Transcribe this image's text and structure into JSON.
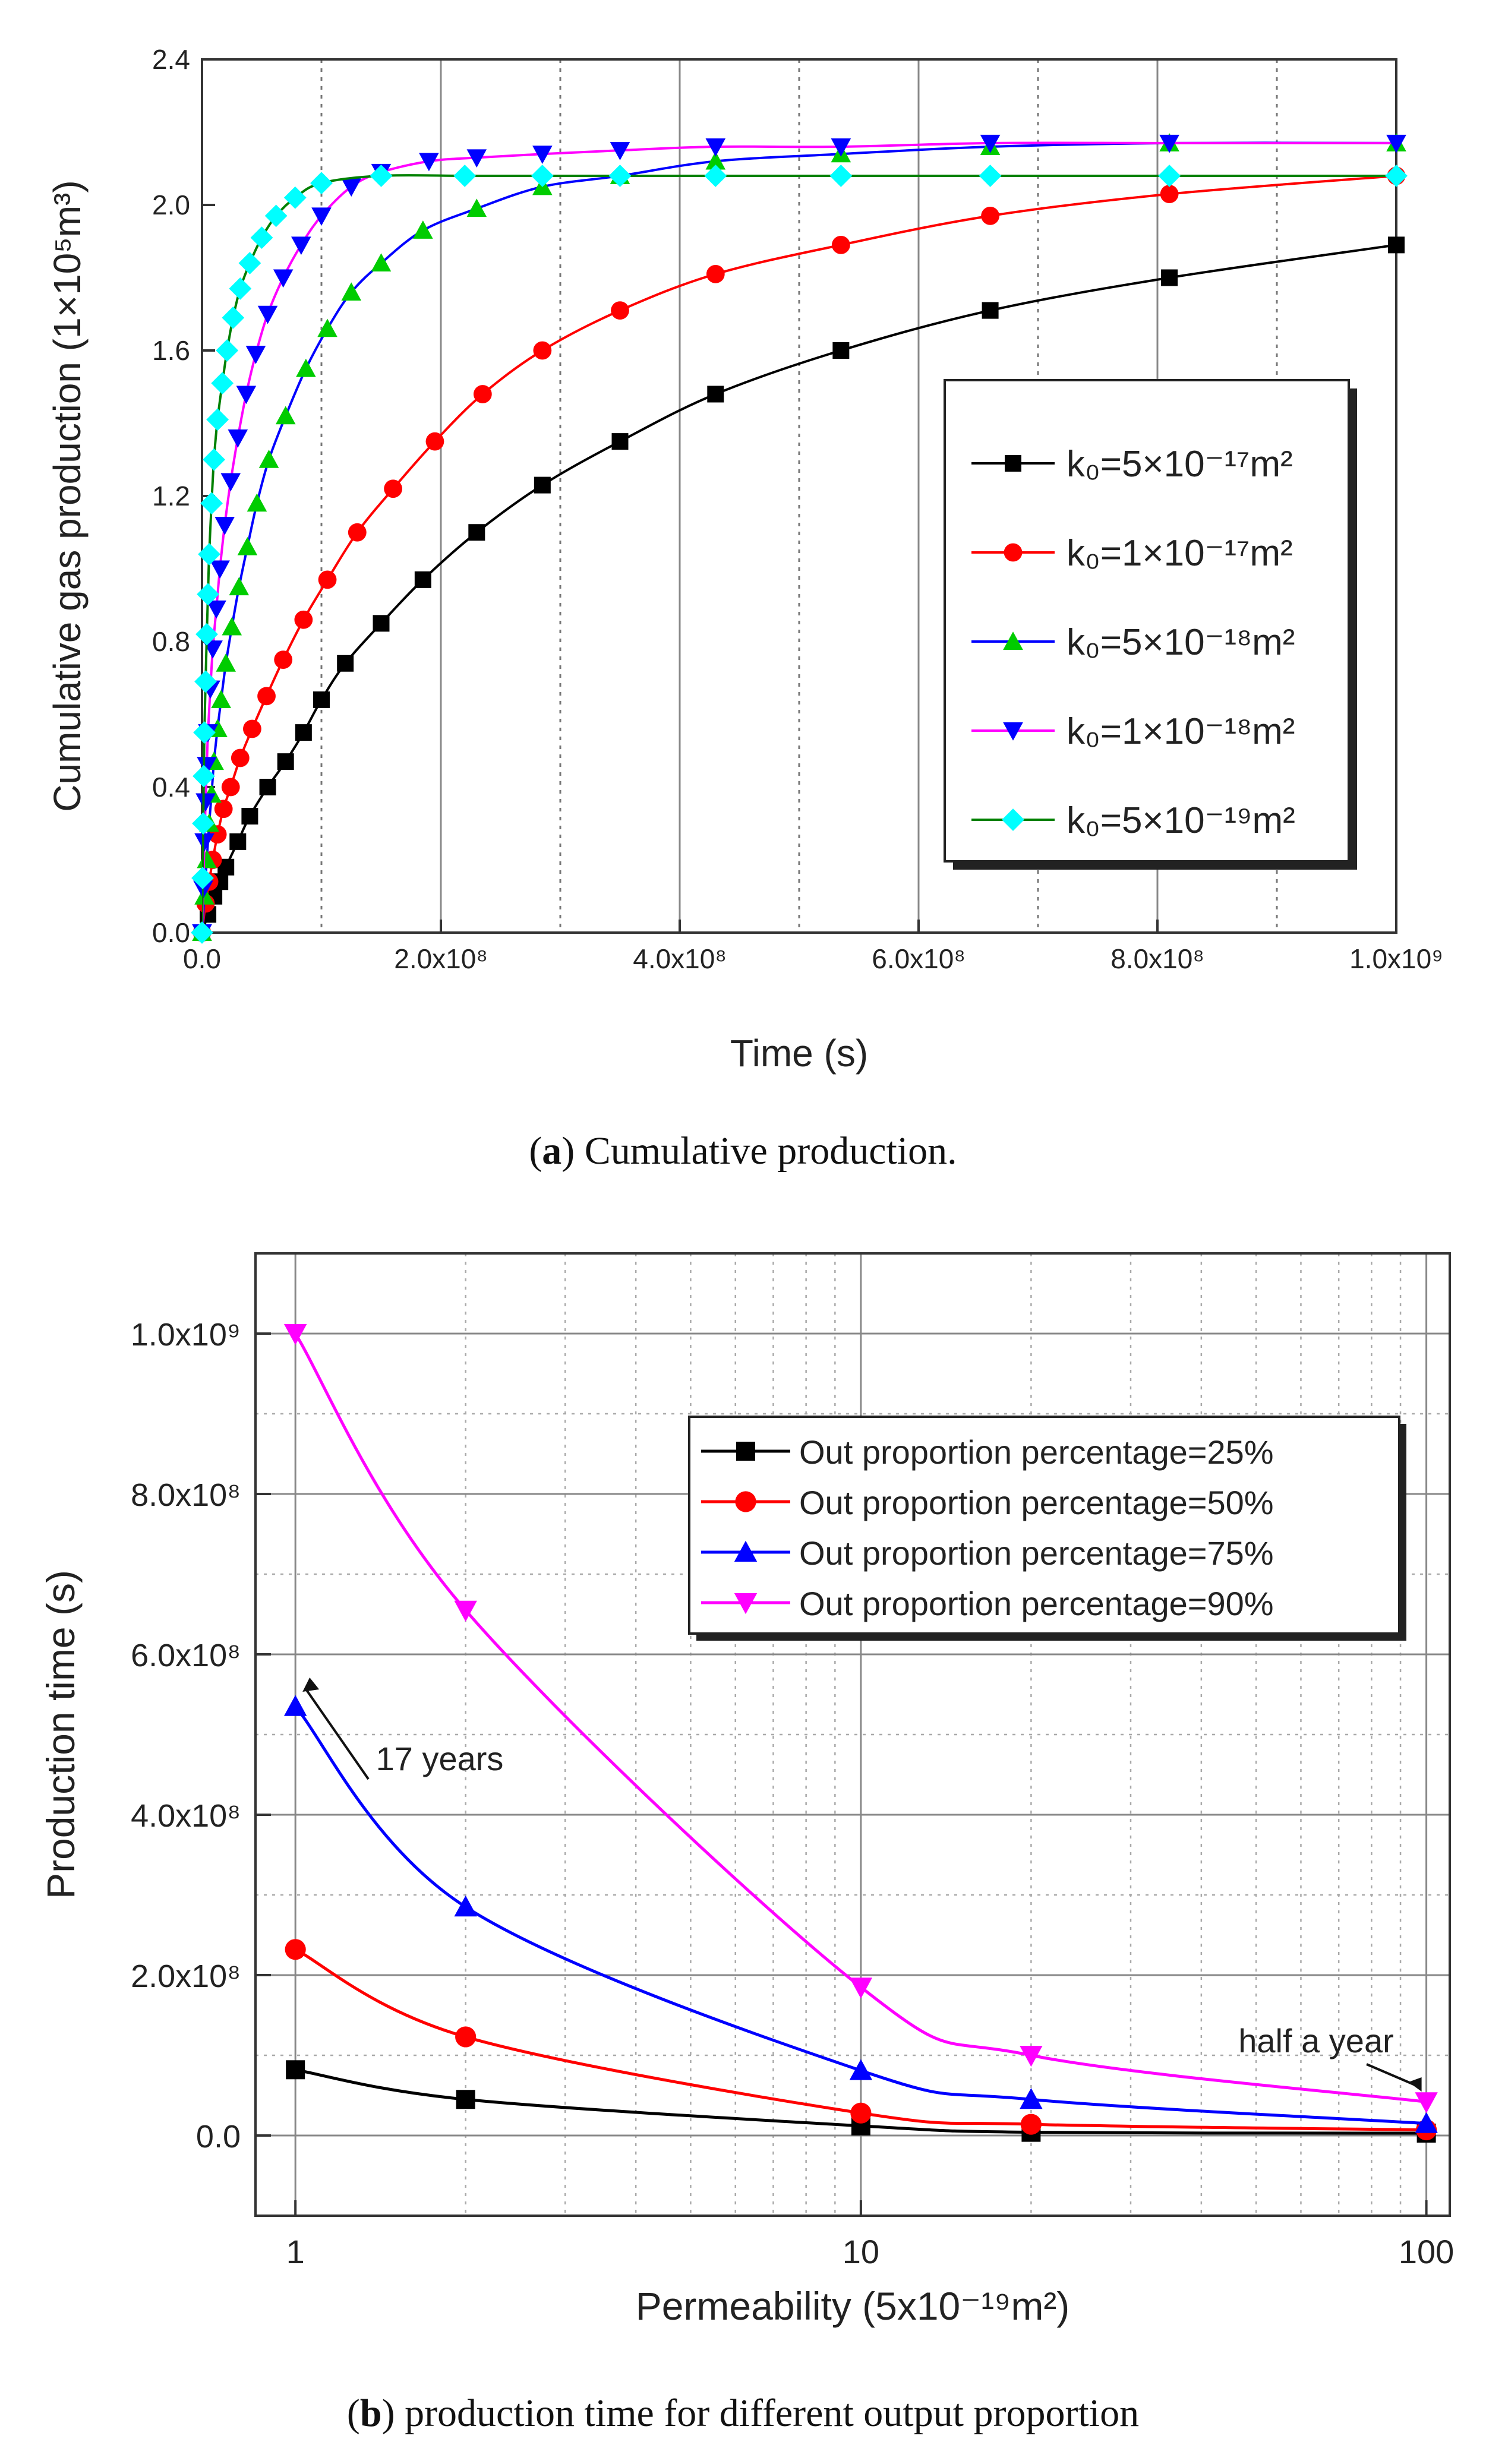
{
  "captions": {
    "a_letter": "a",
    "a_text": "Cumulative production.",
    "b_letter": "b",
    "b_text": "production time for different output proportion"
  },
  "chart_data": [
    {
      "type": "line",
      "panel": "a",
      "xlabel": "Time (s)",
      "ylabel": "Cumulative gas production  (1×10⁵m³)",
      "xlim": [
        0,
        1000000000
      ],
      "ylim": [
        0,
        2.4
      ],
      "xticks": [
        0,
        200000000,
        400000000,
        600000000,
        800000000,
        1000000000
      ],
      "xtick_labels": [
        "0.0",
        "2.0x10⁸",
        "4.0x10⁸",
        "6.0x10⁸",
        "8.0x10⁸",
        "1.0x10⁹"
      ],
      "yticks": [
        0,
        0.4,
        0.8,
        1.2,
        1.6,
        2.0,
        2.4
      ],
      "ytick_labels": [
        "0.0",
        "0.4",
        "0.8",
        "1.2",
        "1.6",
        "2.0",
        "2.4"
      ],
      "grid": "vertical",
      "legend_position": "center-right",
      "series": [
        {
          "name": "k₀=5×10⁻¹⁷m²",
          "color": "#000000",
          "marker": "square",
          "x": [
            0,
            5000000.0,
            10000000.0,
            15000000.0,
            20000000.0,
            30000000.0,
            40000000.0,
            55000000.0,
            70000000.0,
            85000000.0,
            100000000.0,
            120000000.0,
            150000000.0,
            185000000.0,
            230000000.0,
            285000000.0,
            350000000.0,
            430000000.0,
            535000000.0,
            660000000.0,
            810000000.0,
            1000000000.0
          ],
          "y": [
            0,
            0.05,
            0.1,
            0.14,
            0.18,
            0.25,
            0.32,
            0.4,
            0.47,
            0.55,
            0.64,
            0.74,
            0.85,
            0.97,
            1.1,
            1.23,
            1.35,
            1.48,
            1.6,
            1.71,
            1.8,
            1.89
          ]
        },
        {
          "name": "k₀=1×10⁻¹⁷m²",
          "color": "#ff0000",
          "marker": "circle",
          "x": [
            0,
            3000000.0,
            6000000.0,
            9000000.0,
            13000000.0,
            18000000.0,
            24000000.0,
            32000000.0,
            42000000.0,
            54000000.0,
            68000000.0,
            85000000.0,
            105000000.0,
            130000000.0,
            160000000.0,
            195000000.0,
            235000000.0,
            285000000.0,
            350000000.0,
            430000000.0,
            535000000.0,
            660000000.0,
            810000000.0,
            1000000000.0
          ],
          "y": [
            0,
            0.08,
            0.14,
            0.2,
            0.27,
            0.34,
            0.4,
            0.48,
            0.56,
            0.65,
            0.75,
            0.86,
            0.97,
            1.1,
            1.22,
            1.35,
            1.48,
            1.6,
            1.71,
            1.81,
            1.89,
            1.97,
            2.03,
            2.08
          ]
        },
        {
          "name": "k₀=5×10⁻¹⁸m²",
          "color": "#00cc00",
          "line_color": "#0000ff",
          "marker": "triangle-up",
          "x": [
            0,
            2000000.0,
            4000000.0,
            6000000.0,
            8000000.0,
            10000000.0,
            13000000.0,
            16000000.0,
            20000000.0,
            25000000.0,
            31000000.0,
            38000000.0,
            46000000.0,
            56000000.0,
            70000000.0,
            87000000.0,
            105000000.0,
            125000000.0,
            150000000.0,
            185000000.0,
            230000000.0,
            285000000.0,
            350000000.0,
            430000000.0,
            535000000.0,
            660000000.0,
            810000000.0,
            1000000000.0
          ],
          "y": [
            0,
            0.1,
            0.2,
            0.3,
            0.38,
            0.47,
            0.56,
            0.64,
            0.74,
            0.84,
            0.95,
            1.06,
            1.18,
            1.3,
            1.42,
            1.55,
            1.66,
            1.76,
            1.84,
            1.93,
            1.99,
            2.05,
            2.08,
            2.12,
            2.14,
            2.16,
            2.17,
            2.17
          ]
        },
        {
          "name": "k₀=1×10⁻¹⁸m²",
          "color": "#0000ff",
          "line_color": "#ff00ff",
          "marker": "triangle-down",
          "x": [
            0,
            1000000.0,
            2000000.0,
            3000000.0,
            4000000.0,
            5000000.0,
            7000000.0,
            9000000.0,
            12000000.0,
            15000000.0,
            19000000.0,
            24000000.0,
            30000000.0,
            37000000.0,
            45000000.0,
            55000000.0,
            68000000.0,
            83000000.0,
            100000000.0,
            125000000.0,
            150000000.0,
            190000000.0,
            230000000.0,
            285000000.0,
            350000000.0,
            430000000.0,
            535000000.0,
            660000000.0,
            810000000.0,
            1000000000.0
          ],
          "y": [
            0,
            0.12,
            0.25,
            0.36,
            0.46,
            0.55,
            0.67,
            0.78,
            0.89,
            1.0,
            1.12,
            1.24,
            1.36,
            1.48,
            1.59,
            1.7,
            1.8,
            1.89,
            1.97,
            2.05,
            2.09,
            2.12,
            2.13,
            2.14,
            2.15,
            2.16,
            2.16,
            2.17,
            2.17,
            2.17
          ]
        },
        {
          "name": "k₀=5×10⁻¹⁹m²",
          "color": "#00ffff",
          "line_color": "#008000",
          "marker": "diamond",
          "x": [
            0,
            500000.0,
            1000000.0,
            1500000.0,
            2000000.0,
            3000000.0,
            4000000.0,
            5000000.0,
            6000000.0,
            8000000.0,
            10000000.0,
            13000000.0,
            17000000.0,
            21000000.0,
            26000000.0,
            32000000.0,
            40000000.0,
            50000000.0,
            62000000.0,
            78000000.0,
            100000000.0,
            150000000.0,
            220000000.0,
            285000000.0,
            350000000.0,
            430000000.0,
            535000000.0,
            660000000.0,
            810000000.0,
            1000000000.0
          ],
          "y": [
            0,
            0.15,
            0.3,
            0.43,
            0.55,
            0.69,
            0.82,
            0.93,
            1.04,
            1.18,
            1.3,
            1.41,
            1.51,
            1.6,
            1.69,
            1.77,
            1.84,
            1.91,
            1.97,
            2.02,
            2.06,
            2.08,
            2.08,
            2.08,
            2.08,
            2.08,
            2.08,
            2.08,
            2.08,
            2.08
          ]
        }
      ]
    },
    {
      "type": "line",
      "panel": "b",
      "xscale": "log",
      "xlabel": "Permeability (5x10⁻¹⁹m²)",
      "ylabel": "Production time (s)",
      "xlim": [
        0.85,
        110
      ],
      "ylim": [
        -100000000,
        1100000000
      ],
      "xticks": [
        1,
        10,
        100
      ],
      "xtick_labels": [
        "1",
        "10",
        "100"
      ],
      "yticks": [
        0,
        200000000,
        400000000,
        600000000,
        800000000,
        1000000000
      ],
      "ytick_labels": [
        "0.0",
        "2.0x10⁸",
        "4.0x10⁸",
        "6.0x10⁸",
        "8.0x10⁸",
        "1.0x10⁹"
      ],
      "grid": "both",
      "legend_position": "top-right",
      "annotations": [
        {
          "text": "17 years",
          "x": 1,
          "y": 540000000
        },
        {
          "text": "half a year",
          "x": 100,
          "y": 40000000
        }
      ],
      "series": [
        {
          "name": "Out proportion percentage=25%",
          "color": "#000000",
          "marker": "square",
          "x": [
            1,
            2,
            10,
            20,
            100
          ],
          "y": [
            82000000,
            45000000,
            12000000,
            4000000,
            3000000
          ]
        },
        {
          "name": "Out proportion percentage=50%",
          "color": "#ff0000",
          "marker": "circle",
          "x": [
            1,
            2,
            10,
            20,
            100
          ],
          "y": [
            232000000,
            123000000,
            28000000,
            14000000,
            7000000
          ]
        },
        {
          "name": "Out proportion percentage=75%",
          "color": "#0000ff",
          "marker": "triangle-up",
          "x": [
            1,
            2,
            10,
            20,
            100
          ],
          "y": [
            535000000,
            285000000,
            81000000,
            45000000,
            15000000
          ]
        },
        {
          "name": "Out proportion percentage=90%",
          "color": "#ff00ff",
          "marker": "triangle-down",
          "x": [
            1,
            2,
            10,
            20,
            100
          ],
          "y": [
            1000000000,
            655000000,
            185000000,
            100000000,
            42000000
          ]
        }
      ]
    }
  ]
}
